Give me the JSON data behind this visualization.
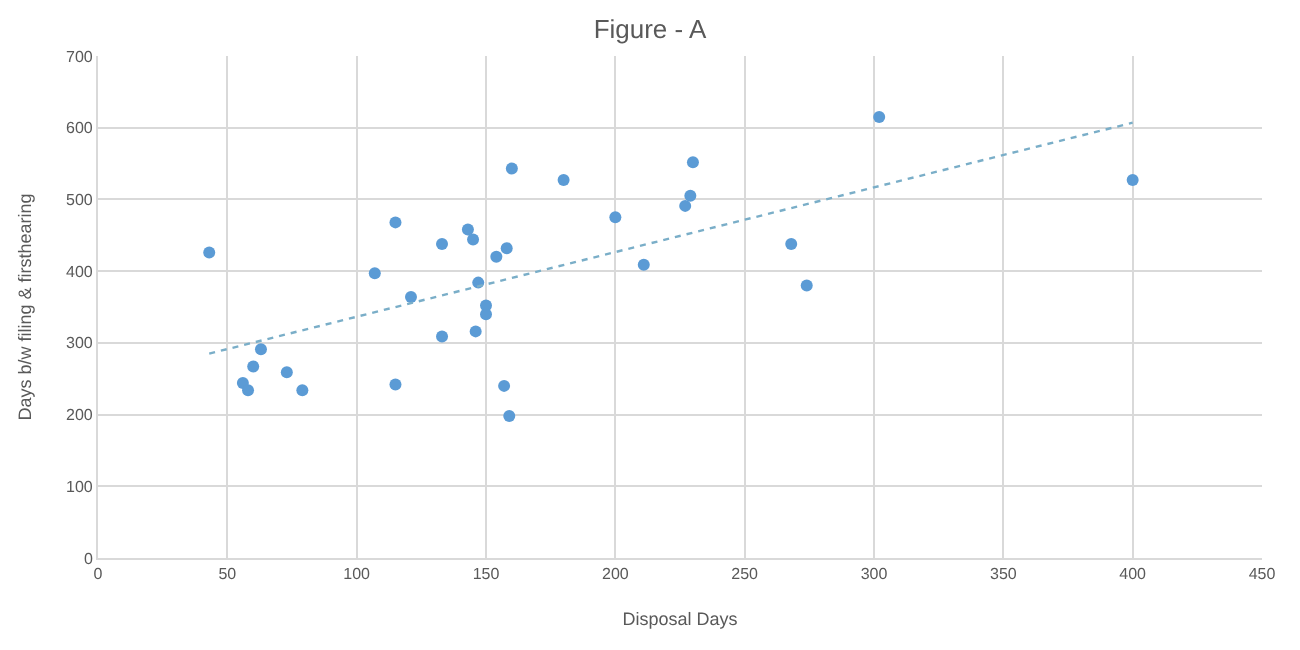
{
  "chart_data": {
    "type": "scatter",
    "title": "Figure - A",
    "xlabel": "Disposal Days",
    "ylabel": "Days b/w filing & firsthearing",
    "xlim": [
      0,
      450
    ],
    "xticks": [
      0,
      50,
      100,
      150,
      200,
      250,
      300,
      350,
      400,
      450
    ],
    "ylim": [
      0,
      700
    ],
    "yticks": [
      0,
      100,
      200,
      300,
      400,
      500,
      600,
      700
    ],
    "grid": true,
    "series": [
      {
        "marker": "circle",
        "color": "#5b9bd5",
        "x": [
          43,
          56,
          58,
          60,
          63,
          73,
          79,
          107,
          115,
          115,
          121,
          133,
          133,
          143,
          145,
          154,
          158,
          147,
          150,
          150,
          146,
          157,
          159,
          160,
          180,
          200,
          211,
          227,
          229,
          230,
          268,
          274,
          302,
          400
        ],
        "values": [
          426,
          244,
          234,
          267,
          291,
          259,
          234,
          397,
          468,
          242,
          364,
          438,
          309,
          458,
          444,
          420,
          432,
          384,
          352,
          340,
          316,
          240,
          198,
          543,
          527,
          475,
          409,
          491,
          505,
          552,
          438,
          380,
          615,
          527
        ]
      },
      {
        "type": "line",
        "marker": "none",
        "line_style": "dotted",
        "color": "#7aaec8",
        "x": [
          43,
          400
        ],
        "values": [
          285,
          607
        ]
      }
    ]
  }
}
